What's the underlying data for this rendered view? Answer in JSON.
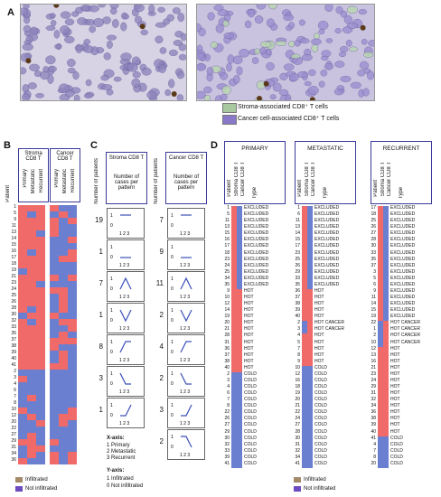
{
  "panels": {
    "a": "A",
    "b": "B",
    "c": "C",
    "d": "D"
  },
  "colors": {
    "infiltrated": "#f06a6a",
    "not_infiltrated": "#6b7fd0",
    "stroma_cell": "#a8c8a0",
    "cancer_cell": "#8a78c8"
  },
  "panel_a": {
    "legend": [
      {
        "icon": "stroma-cell-icon",
        "label": "Stroma-associated CD8⁺ T cells"
      },
      {
        "icon": "cancer-cell-icon",
        "label": "Cancer cell-associated CD8⁺ T cells"
      }
    ]
  },
  "panel_b": {
    "groups": [
      {
        "title": "Stroma CD8 T",
        "cols": [
          "Primary",
          "Metastatic",
          "Recurrent"
        ]
      },
      {
        "title": "Cancer CD8 T",
        "cols": [
          "Primary",
          "Metastatic",
          "Recurrent"
        ]
      }
    ],
    "patient_label": "Patient",
    "patients": [
      "1",
      "5",
      "9",
      "11",
      "13",
      "14",
      "15",
      "16",
      "17",
      "18",
      "19",
      "21",
      "23",
      "24",
      "25",
      "26",
      "28",
      "30",
      "32",
      "33",
      "35",
      "37",
      "38",
      "39",
      "40",
      "41",
      "2",
      "3",
      "4",
      "6",
      "7",
      "8",
      "10",
      "12",
      "20",
      "22",
      "27",
      "29",
      "31",
      "34",
      "36"
    ],
    "legend": [
      {
        "label": "Infiltrated"
      },
      {
        "label": "Not infiltrated"
      }
    ]
  },
  "panel_c": {
    "y_label": "Number of patients",
    "columns": [
      {
        "title": "Stroma CD8 T",
        "sub": "Number of cases per pattern",
        "counts": [
          "19",
          "1",
          "7",
          "1",
          "8",
          "3",
          "1"
        ]
      },
      {
        "title": "Cancer CD8 T",
        "sub": "Number of cases per pattern",
        "counts": [
          "7",
          "9",
          "11",
          "2",
          "4",
          "2",
          "3",
          "2"
        ]
      }
    ],
    "tick_y": [
      "1",
      "0"
    ],
    "tick_x": "1 2 3",
    "xaxis_title": "X-axis:",
    "xaxis_items": [
      "1 Primary",
      "2 Metastatic",
      "3 Recurrent"
    ],
    "yaxis_title": "Y-axis:",
    "yaxis_items": [
      "1 Infiltrated",
      "0 Not infiltrated"
    ]
  },
  "panel_d": {
    "patient_label": "Patient",
    "col_labels": [
      "Stroma CD8 T",
      "Cancer CD8 T"
    ],
    "type_label": "Type",
    "blocks": [
      {
        "title": "PRIMARY",
        "patients": [
          "1",
          "5",
          "11",
          "13",
          "15",
          "16",
          "17",
          "18",
          "23",
          "24",
          "25",
          "34",
          "35",
          "9",
          "10",
          "12",
          "14",
          "19",
          "20",
          "21",
          "28",
          "31",
          "36",
          "37",
          "38",
          "40",
          "2",
          "3",
          "4",
          "6",
          "7",
          "8",
          "22",
          "26",
          "27",
          "29",
          "30",
          "32",
          "33",
          "39",
          "41"
        ],
        "types": [
          "EXCLUDED",
          "EXCLUDED",
          "EXCLUDED",
          "EXCLUDED",
          "EXCLUDED",
          "EXCLUDED",
          "EXCLUDED",
          "EXCLUDED",
          "EXCLUDED",
          "EXCLUDED",
          "EXCLUDED",
          "EXCLUDED",
          "EXCLUDED",
          "HOT",
          "HOT",
          "HOT",
          "HOT",
          "HOT",
          "HOT",
          "HOT",
          "HOT",
          "HOT",
          "HOT",
          "HOT",
          "HOT",
          "HOT",
          "COLD",
          "COLD",
          "COLD",
          "COLD",
          "COLD",
          "COLD",
          "COLD",
          "COLD",
          "COLD",
          "COLD",
          "COLD",
          "COLD",
          "COLD",
          "COLD",
          "COLD"
        ]
      },
      {
        "title": "METASTATIC",
        "patients": [
          "1",
          "6",
          "11",
          "13",
          "14",
          "15",
          "17",
          "23",
          "25",
          "26",
          "29",
          "33",
          "35",
          "36",
          "37",
          "38",
          "39",
          "40",
          "2",
          "3",
          "4",
          "5",
          "7",
          "8",
          "9",
          "10",
          "12",
          "16",
          "18",
          "19",
          "20",
          "21",
          "22",
          "24",
          "27",
          "28",
          "30",
          "31",
          "32",
          "34",
          "41"
        ],
        "types": [
          "EXCLUDED",
          "EXCLUDED",
          "EXCLUDED",
          "EXCLUDED",
          "EXCLUDED",
          "EXCLUDED",
          "EXCLUDED",
          "EXCLUDED",
          "EXCLUDED",
          "EXCLUDED",
          "EXCLUDED",
          "EXCLUDED",
          "EXCLUDED",
          "HOT",
          "HOT",
          "HOT",
          "HOT",
          "HOT",
          "HOT CANCER",
          "HOT CANCER",
          "HOT",
          "HOT",
          "HOT",
          "HOT",
          "HOT",
          "COLD",
          "COLD",
          "COLD",
          "COLD",
          "COLD",
          "COLD",
          "COLD",
          "COLD",
          "COLD",
          "COLD",
          "COLD",
          "COLD",
          "COLD",
          "COLD",
          "COLD",
          "COLD"
        ]
      },
      {
        "title": "RECURRENT",
        "patients": [
          "17",
          "18",
          "25",
          "26",
          "27",
          "28",
          "30",
          "33",
          "35",
          "37",
          "3",
          "5",
          "6",
          "9",
          "11",
          "14",
          "15",
          "19",
          "22",
          "1",
          "2",
          "10",
          "12",
          "13",
          "16",
          "21",
          "23",
          "24",
          "29",
          "31",
          "32",
          "34",
          "36",
          "38",
          "39",
          "40",
          "41",
          "4",
          "7",
          "8",
          "20"
        ],
        "types": [
          "EXCLUDED",
          "EXCLUDED",
          "EXCLUDED",
          "EXCLUDED",
          "EXCLUDED",
          "EXCLUDED",
          "EXCLUDED",
          "EXCLUDED",
          "EXCLUDED",
          "EXCLUDED",
          "EXCLUDED",
          "EXCLUDED",
          "EXCLUDED",
          "EXCLUDED",
          "EXCLUDED",
          "EXCLUDED",
          "EXCLUDED",
          "EXCLUDED",
          "HOT CANCER",
          "HOT CANCER",
          "HOT CANCER",
          "HOT CANCER",
          "HOT",
          "HOT",
          "HOT",
          "HOT",
          "HOT",
          "HOT",
          "HOT",
          "HOT",
          "HOT",
          "HOT",
          "HOT",
          "HOT",
          "HOT",
          "HOT",
          "COLD",
          "COLD",
          "COLD",
          "COLD",
          "COLD"
        ]
      }
    ],
    "legend": [
      {
        "label": "Infiltrated"
      },
      {
        "label": "Not infiltrated"
      }
    ]
  }
}
